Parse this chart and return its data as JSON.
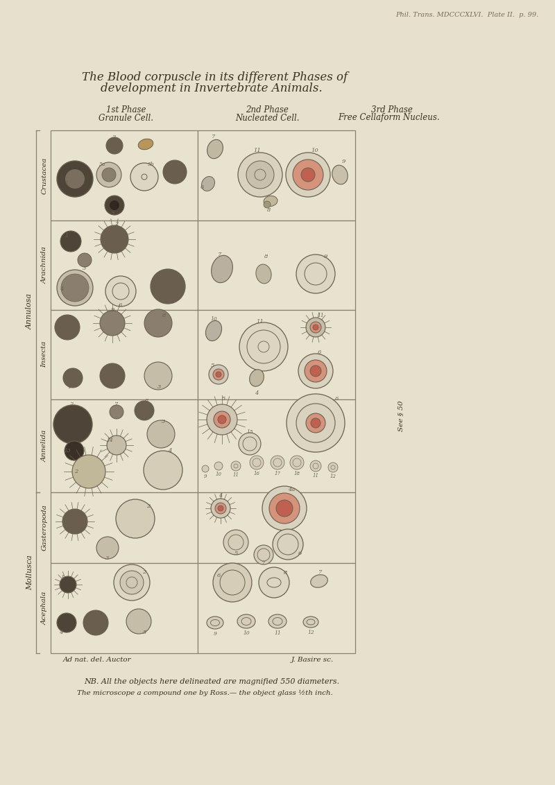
{
  "bg_color": "#e6e0cc",
  "header_text": "Phil. Trans. MDCCCXLVI.  Plate II.  p. 99.",
  "title_line1": "The Blood corpuscle in its different Phases of",
  "title_line2": "development in Invertebrate Animals.",
  "phase1_label": "1st Phase",
  "phase1_sub": "Granule Cell.",
  "phase2_label": "2nd Phase",
  "phase2_sub": "Nucleated Cell.",
  "phase3_label": "3rd Phase",
  "phase3_sub": "Free Cellaform Nucleus.",
  "row_labels": [
    "Crustacea",
    "Arachnida",
    "Insecta",
    "Annelida",
    "Gasteropoda",
    "Acephala"
  ],
  "group_label1": "Annulosa",
  "group_label2": "Mollusca",
  "footer_left": "Ad nat. del. Auctor",
  "footer_right": "J. Basire sc.",
  "nb_line1": "NB. All the objects here delineated are magnified 550 diameters.",
  "nb_line2": "The microscope a compound one by Ross.— the object glass ½th inch.",
  "side_text": "See § 50",
  "text_color": "#3a3020",
  "ec": "#6a6050",
  "grid_color": "#8a8070",
  "box_bg": "#e8e3cf"
}
